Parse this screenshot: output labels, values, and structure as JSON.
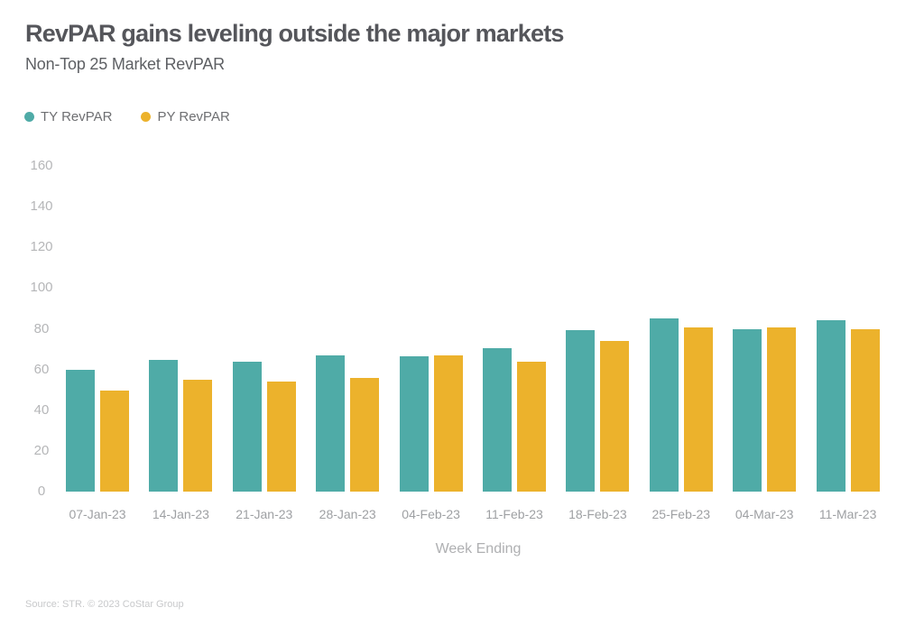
{
  "header": {
    "title": "RevPAR gains leveling outside the major markets",
    "subtitle": "Non-Top 25 Market RevPAR"
  },
  "colors": {
    "ty": "#4FABA7",
    "py": "#ECB22C",
    "title_text": "#55565B",
    "axis_text": "#B5B6B8"
  },
  "chart_data": {
    "type": "bar",
    "categories": [
      "07-Jan-23",
      "14-Jan-23",
      "21-Jan-23",
      "28-Jan-23",
      "04-Feb-23",
      "11-Feb-23",
      "18-Feb-23",
      "25-Feb-23",
      "04-Mar-23",
      "11-Mar-23"
    ],
    "series": [
      {
        "name": "TY RevPAR",
        "color": "#4FABA7",
        "values": [
          60,
          64.5,
          64,
          67,
          66.5,
          70.5,
          79.5,
          85,
          80,
          84
        ]
      },
      {
        "name": "PY RevPAR",
        "color": "#ECB22C",
        "values": [
          49.5,
          55,
          54,
          56,
          67,
          64,
          74,
          80.5,
          80.5,
          80
        ]
      }
    ],
    "title": "RevPAR gains leveling outside the major markets",
    "subtitle": "Non-Top 25 Market RevPAR",
    "xlabel": "Week Ending",
    "ylabel": "",
    "ylim": [
      0,
      160
    ],
    "yticks": [
      0,
      20,
      40,
      60,
      80,
      100,
      120,
      140,
      160
    ],
    "grid": false,
    "legend_position": "top-left"
  },
  "footer": {
    "source": "Source: STR. © 2023 CoStar Group"
  }
}
